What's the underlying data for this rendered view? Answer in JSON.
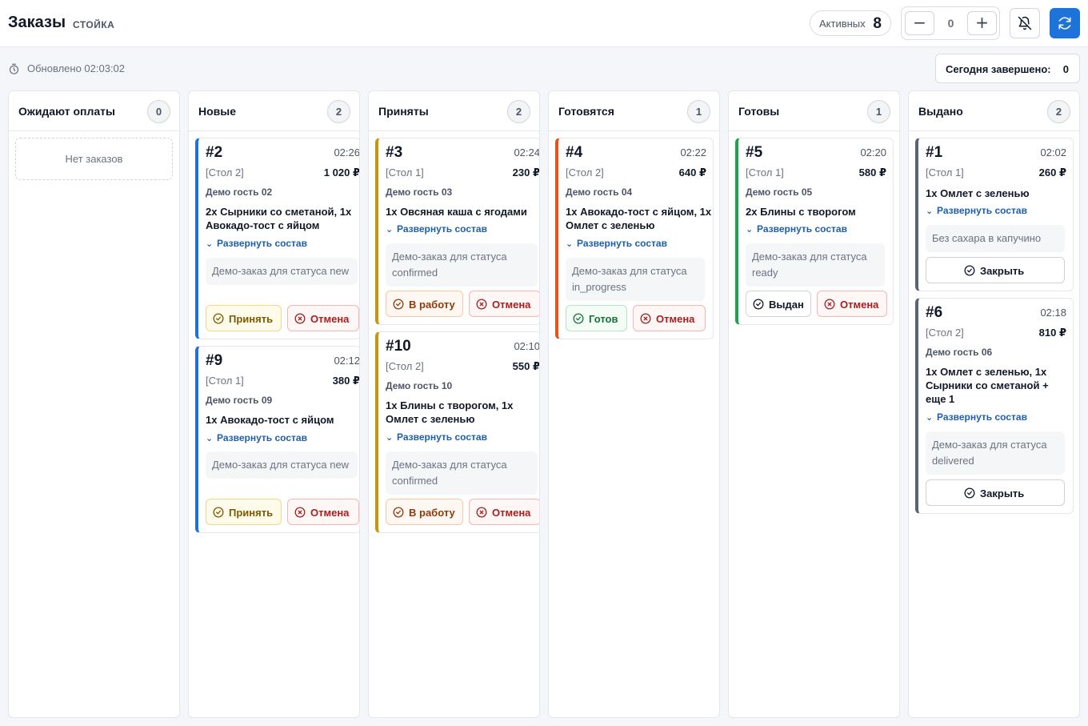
{
  "header": {
    "title": "Заказы",
    "subtitle": "СТОЙКА",
    "active_label": "Активных",
    "active_count": "8",
    "stepper_value": "0",
    "stepper_minus": "−",
    "stepper_plus": "+",
    "bell_icon": "bell-off-icon",
    "refresh_icon": "refresh-icon",
    "accent_color": "#1e73d8"
  },
  "status": {
    "updated": "Обновлено 02:03:02",
    "done_label": "Сегодня завершено:",
    "done_count": "0"
  },
  "columns": [
    {
      "title": "Ожидают оплаты",
      "count": "0",
      "empty": "Нет заказов",
      "cards": []
    },
    {
      "title": "Новые",
      "count": "2",
      "cards": [
        {
          "num": "#2",
          "time": "02:26",
          "table": "[Стол 2]",
          "price": "1 020 ₽",
          "guest": "Демо гость 02",
          "items": "2x Сырники со сметаной, 1x Авокадо-тост с яйцом",
          "expand": "Развернуть состав",
          "note": "Демо-заказ для статуса new",
          "accent": "#1e73d8",
          "actions": [
            "Принять",
            "Отмена"
          ]
        },
        {
          "num": "#9",
          "time": "02:12",
          "table": "[Стол 1]",
          "price": "380 ₽",
          "guest": "Демо гость 09",
          "items": "1x Авокадо-тост с яйцом",
          "expand": "Развернуть состав",
          "note": "Демо-заказ для статуса new",
          "accent": "#1e73d8",
          "actions": [
            "Принять",
            "Отмена"
          ]
        }
      ]
    },
    {
      "title": "Приняты",
      "count": "2",
      "cards": [
        {
          "num": "#3",
          "time": "02:24",
          "table": "[Стол 1]",
          "price": "230 ₽",
          "guest": "Демо гость 03",
          "items": "1x Овсяная каша с ягодами",
          "expand": "Развернуть состав",
          "note": "Демо-заказ для статуса confirmed",
          "accent": "#c8960c",
          "actions": [
            "В работу",
            "Отмена"
          ]
        },
        {
          "num": "#10",
          "time": "02:10",
          "table": "[Стол 2]",
          "price": "550 ₽",
          "guest": "Демо гость 10",
          "items": "1x Блины с творогом, 1x Омлет с зеленью",
          "expand": "Развернуть состав",
          "note": "Демо-заказ для статуса confirmed",
          "accent": "#c8960c",
          "actions": [
            "В работу",
            "Отмена"
          ]
        }
      ]
    },
    {
      "title": "Готовятся",
      "count": "1",
      "cards": [
        {
          "num": "#4",
          "time": "02:22",
          "table": "[Стол 2]",
          "price": "640 ₽",
          "guest": "Демо гость 04",
          "items": "1x Авокадо-тост с яйцом, 1x Омлет с зеленью",
          "expand": "Развернуть состав",
          "note": "Демо-заказ для статуса in_progress",
          "accent": "#e5531a",
          "actions": [
            "Готов",
            "Отмена"
          ]
        }
      ]
    },
    {
      "title": "Готовы",
      "count": "1",
      "cards": [
        {
          "num": "#5",
          "time": "02:20",
          "table": "[Стол 1]",
          "price": "580 ₽",
          "guest": "Демо гость 05",
          "items": "2x Блины с творогом",
          "expand": "Развернуть состав",
          "note": "Демо-заказ для статуса ready",
          "accent": "#1fa34a",
          "actions": [
            "Выдан",
            "Отмена"
          ]
        }
      ]
    },
    {
      "title": "Выдано",
      "count": "2",
      "cards": [
        {
          "num": "#1",
          "time": "02:02",
          "table": "[Стол 1]",
          "price": "260 ₽",
          "items": "1x Омлет с зеленью",
          "expand": "Развернуть состав",
          "note": "Без сахара в капучино",
          "accent": "#5b6475",
          "actions": [
            "Закрыть"
          ]
        },
        {
          "num": "#6",
          "time": "02:18",
          "table": "[Стол 2]",
          "price": "810 ₽",
          "guest": "Демо гость 06",
          "items": "1x Омлет с зеленью, 1x Сырники со сметаной + еще 1",
          "expand": "Развернуть состав",
          "note": "Демо-заказ для статуса delivered",
          "accent": "#5b6475",
          "actions": [
            "Закрыть"
          ]
        }
      ]
    }
  ]
}
